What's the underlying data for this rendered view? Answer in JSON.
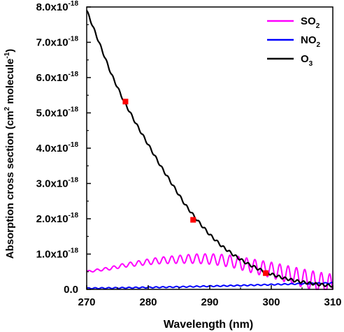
{
  "chart_data": {
    "type": "line",
    "title": "",
    "xlabel": "Wavelength (nm)",
    "ylabel": "Absorption cross section (cm2 molecule-1)",
    "ylabel_parts": {
      "base": "Absorption cross section (cm",
      "sup1": "2",
      "mid": " molecule",
      "sup2": "-1",
      "end": ")"
    },
    "xlim": [
      270,
      310
    ],
    "ylim": [
      0,
      8e-18
    ],
    "x_ticks": [
      "270",
      "280",
      "290",
      "300",
      "310"
    ],
    "y_ticks": [
      {
        "mant": "0.0",
        "exp": ""
      },
      {
        "mant": "1.0x10",
        "exp": "-18"
      },
      {
        "mant": "2.0x10",
        "exp": "-18"
      },
      {
        "mant": "3.0x10",
        "exp": "-18"
      },
      {
        "mant": "4.0x10",
        "exp": "-18"
      },
      {
        "mant": "5.0x10",
        "exp": "-18"
      },
      {
        "mant": "6.0x10",
        "exp": "-18"
      },
      {
        "mant": "7.0x10",
        "exp": "-18"
      },
      {
        "mant": "8.0x10",
        "exp": "-18"
      }
    ],
    "legend_position": "top-right",
    "series": [
      {
        "name": "SO2",
        "label_base": "SO",
        "label_sub": "2",
        "color": "#ff00ff",
        "x": [
          270,
          272,
          274,
          276,
          278,
          280,
          282,
          284,
          286,
          288,
          290,
          292,
          294,
          296,
          298,
          300,
          302,
          304,
          306,
          308,
          310
        ],
        "y": [
          5e-19,
          5.5e-19,
          6e-19,
          6.8e-19,
          7.3e-19,
          7.8e-19,
          8.2e-19,
          8.4e-19,
          8.6e-19,
          8.7e-19,
          8.6e-19,
          8.3e-19,
          7.8e-19,
          7e-19,
          6.2e-19,
          5.5e-19,
          4.6e-19,
          3.7e-19,
          2.8e-19,
          2e-19,
          1.3e-19
        ]
      },
      {
        "name": "NO2",
        "label_base": "NO",
        "label_sub": "2",
        "color": "#0000ff",
        "x": [
          270,
          275,
          280,
          285,
          290,
          295,
          300,
          305,
          310
        ],
        "y": [
          3e-20,
          4e-20,
          5.5e-20,
          7e-20,
          9e-20,
          1.1e-19,
          1.35e-19,
          1.6e-19,
          1.8e-19
        ]
      },
      {
        "name": "O3",
        "label_base": "O",
        "label_sub": "3",
        "color": "#000000",
        "x": [
          270,
          272,
          274,
          276,
          278,
          280,
          282,
          284,
          286,
          288,
          290,
          292,
          294,
          296,
          298,
          300,
          302,
          304,
          306,
          308,
          310
        ],
        "y": [
          7.9e-18,
          7e-18,
          6.1e-18,
          5.35e-18,
          4.7e-18,
          4.1e-18,
          3.5e-18,
          2.95e-18,
          2.4e-18,
          1.95e-18,
          1.55e-18,
          1.22e-18,
          9.6e-19,
          7.4e-19,
          5.7e-19,
          4.3e-19,
          3.2e-19,
          2.4e-19,
          1.8e-19,
          1.35e-19,
          1e-19
        ]
      }
    ],
    "markers": {
      "color": "#ff0000",
      "points": [
        {
          "x": 276.3,
          "y": 5.32e-18
        },
        {
          "x": 287.3,
          "y": 1.97e-18
        },
        {
          "x": 299.1,
          "y": 4.6e-19
        }
      ]
    }
  }
}
